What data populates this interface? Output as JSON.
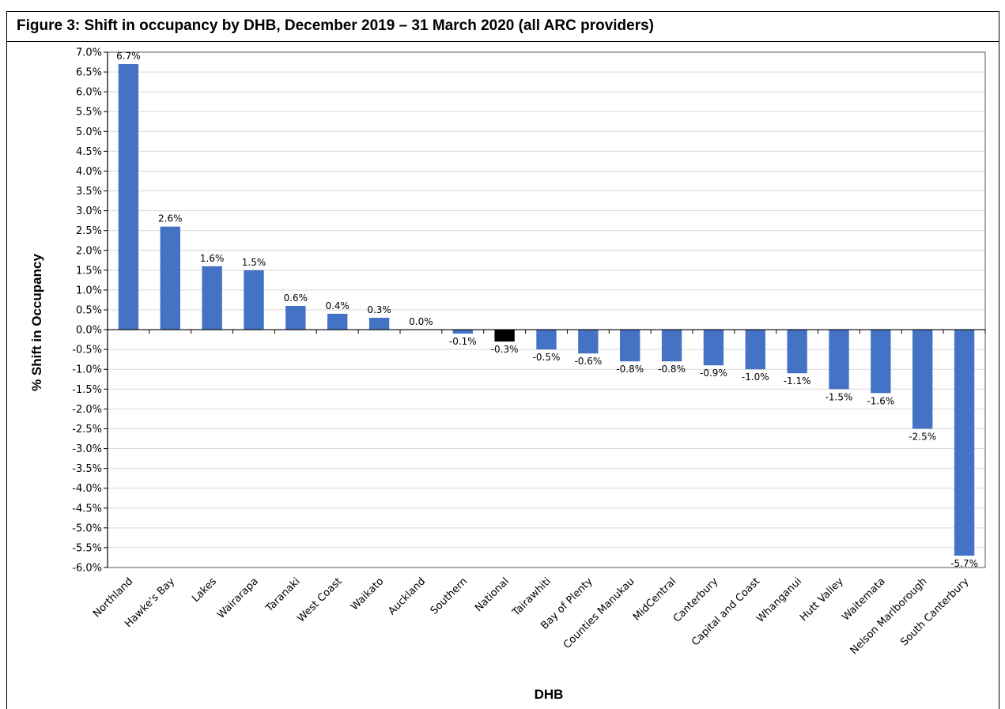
{
  "figure": {
    "title": "Figure 3: Shift in occupancy by DHB, December 2019 – 31 March 2020 (all ARC providers)"
  },
  "chart_data": {
    "type": "bar",
    "xlabel": "DHB",
    "ylabel": "% Shift in Occupancy",
    "ylim": [
      -6.0,
      7.0
    ],
    "ytick_step": 0.5,
    "grid": true,
    "legend": "none",
    "bar_color": "#4472C4",
    "highlight_color": "#000000",
    "highlight_category": "National",
    "categories": [
      "Northland",
      "Hawke's Bay",
      "Lakes",
      "Wairarapa",
      "Taranaki",
      "West Coast",
      "Waikato",
      "Auckland",
      "Southern",
      "National",
      "Tairawhiti",
      "Bay of Plenty",
      "Counties Manukau",
      "MidCentral",
      "Canterbury",
      "Capital and Coast",
      "Whanganui",
      "Hutt Valley",
      "Waitemata",
      "Nelson Marlborough",
      "South Canterbury"
    ],
    "values": [
      6.7,
      2.6,
      1.6,
      1.5,
      0.6,
      0.4,
      0.3,
      0.0,
      -0.1,
      -0.3,
      -0.5,
      -0.6,
      -0.8,
      -0.8,
      -0.9,
      -1.0,
      -1.1,
      -1.5,
      -1.6,
      -2.5,
      -5.7
    ],
    "data_labels": [
      "6.7%",
      "2.6%",
      "1.6%",
      "1.5%",
      "0.6%",
      "0.4%",
      "0.3%",
      "0.0%",
      "-0.1%",
      "-0.3%",
      "-0.5%",
      "-0.6%",
      "-0.8%",
      "-0.8%",
      "-0.9%",
      "-1.0%",
      "-1.1%",
      "-1.5%",
      "-1.6%",
      "-2.5%",
      "-5.7%"
    ]
  }
}
